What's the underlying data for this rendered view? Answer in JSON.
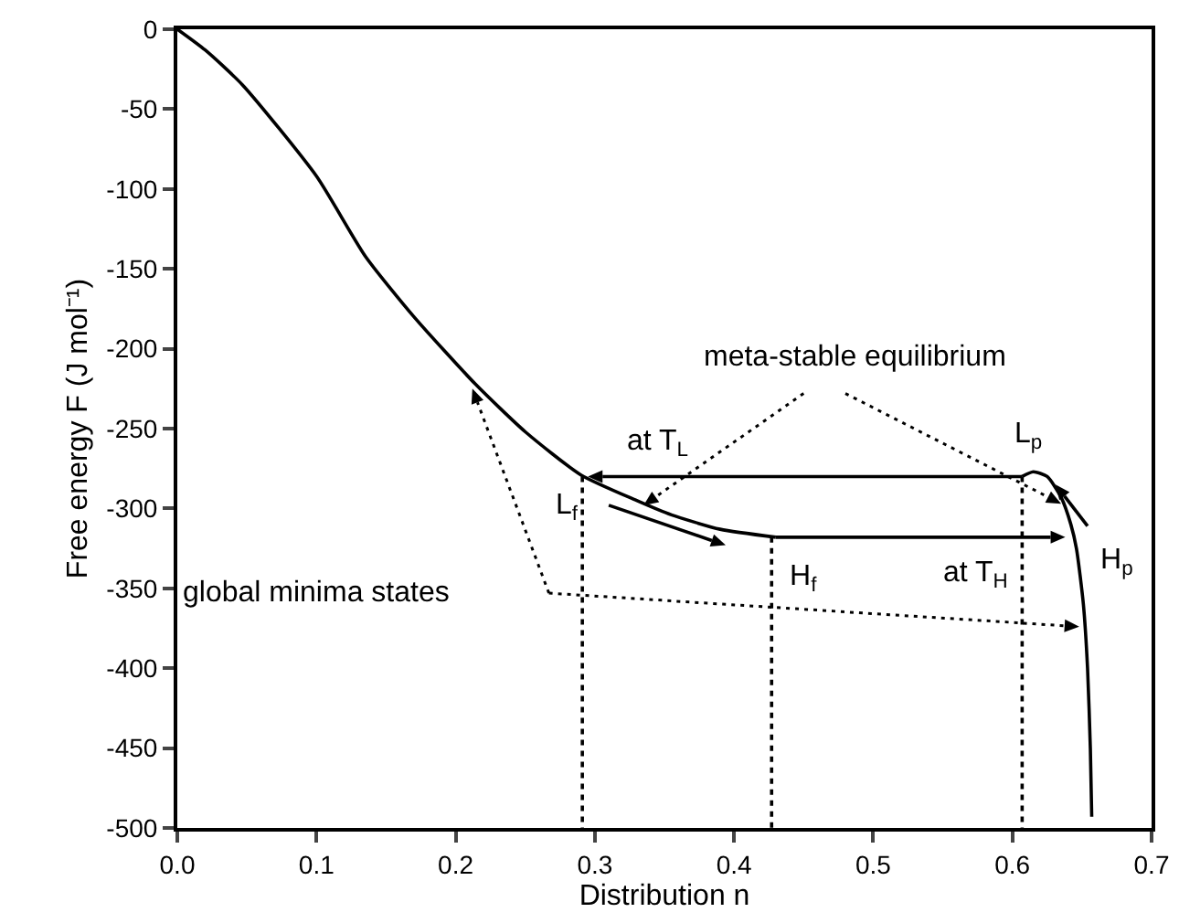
{
  "chart_data": {
    "type": "line",
    "xlabel": "Distribution n",
    "ylabel": "Free energy F (J mol⁻¹)",
    "xlim": [
      0,
      0.7
    ],
    "ylim": [
      -500,
      0
    ],
    "xticks": [
      {
        "value": 0,
        "label": "0.0"
      },
      {
        "value": 0.1,
        "label": "0.1"
      },
      {
        "value": 0.2,
        "label": "0.2"
      },
      {
        "value": 0.3,
        "label": "0.3"
      },
      {
        "value": 0.4,
        "label": "0.4"
      },
      {
        "value": 0.5,
        "label": "0.5"
      },
      {
        "value": 0.6,
        "label": "0.6"
      },
      {
        "value": 0.7,
        "label": "0.7"
      }
    ],
    "yticks": [
      0,
      -50,
      -100,
      -150,
      -200,
      -250,
      -300,
      -350,
      -400,
      -450,
      -500
    ],
    "grid": false,
    "series": [
      {
        "color": "#000000",
        "line_style": "solid",
        "marker": "none",
        "x": [
          0,
          0.02,
          0.047,
          0.1,
          0.135,
          0.17,
          0.214,
          0.25,
          0.29,
          0.33,
          0.355,
          0.39,
          0.43,
          0.5,
          0.607,
          0.615,
          0.625,
          0.635,
          0.642,
          0.646,
          0.651,
          0.654,
          0.656,
          0.657
        ],
        "values": [
          0,
          -13,
          -35,
          -92,
          -142,
          -180,
          -222,
          -252,
          -279,
          -295,
          -304,
          -313,
          -318,
          null,
          -280,
          -277,
          -280,
          -293,
          -310,
          -325,
          -360,
          -400,
          -450,
          -493
        ]
      },
      {
        "color": "#000000",
        "line_style": "dotted",
        "marker": "none",
        "x": [
          0.291,
          0.291
        ],
        "values": [
          -280,
          -500
        ]
      },
      {
        "color": "#000000",
        "line_style": "dotted",
        "marker": "none",
        "x": [
          0.427,
          0.427
        ],
        "values": [
          -318,
          -500
        ]
      },
      {
        "color": "#000000",
        "line_style": "dotted",
        "marker": "none",
        "x": [
          0.607,
          0.607
        ],
        "values": [
          -280,
          -500
        ]
      }
    ],
    "annotations": [
      {
        "text": "meta-stable equilibrium",
        "x": 0.335,
        "y": -298
      },
      "global minima states",
      "at T$_{L}$",
      "at T$_{H}$",
      "L$_{f}$",
      "H$_{f}$",
      "L$_{p}$",
      "H$_{p}$"
    ]
  }
}
